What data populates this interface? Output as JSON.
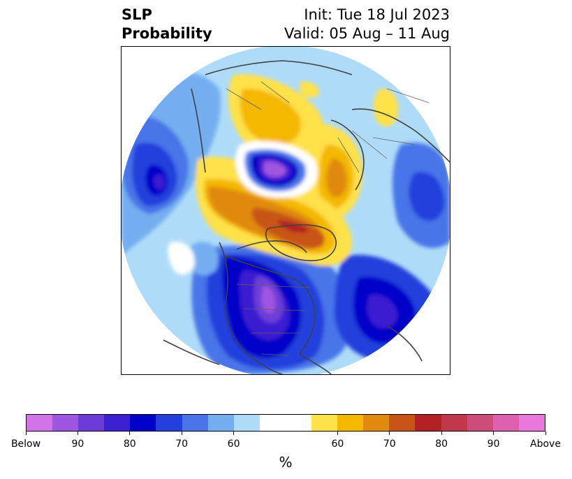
{
  "title": {
    "left_line1": "SLP",
    "left_line2": "Probability",
    "right_line1": "Init: Tue 18 Jul 2023",
    "right_line2": "Valid: 05 Aug – 11 Aug"
  },
  "colorbar": {
    "units": "%",
    "colors": [
      "#d174e8",
      "#a055e0",
      "#6d3cd8",
      "#3b1fd0",
      "#0000c8",
      "#2340dc",
      "#4a74e8",
      "#74aef0",
      "#aedcf8",
      "#ffffff",
      "#ffffff",
      "#ffe14a",
      "#f4b800",
      "#e08a10",
      "#c85418",
      "#b22222",
      "#c0384a",
      "#cc4c7c",
      "#de60ae",
      "#e878dc"
    ],
    "tick_labels": [
      "Below",
      "90",
      "80",
      "70",
      "60",
      "60",
      "70",
      "80",
      "90",
      "Above"
    ]
  },
  "map": {
    "projection": "north-polar-stereographic",
    "features": [
      "below-normal-north-atlantic",
      "below-normal-north-america",
      "below-normal-arctic-center",
      "above-normal-greenland",
      "above-normal-siberia",
      "above-normal-scandinavia"
    ]
  }
}
